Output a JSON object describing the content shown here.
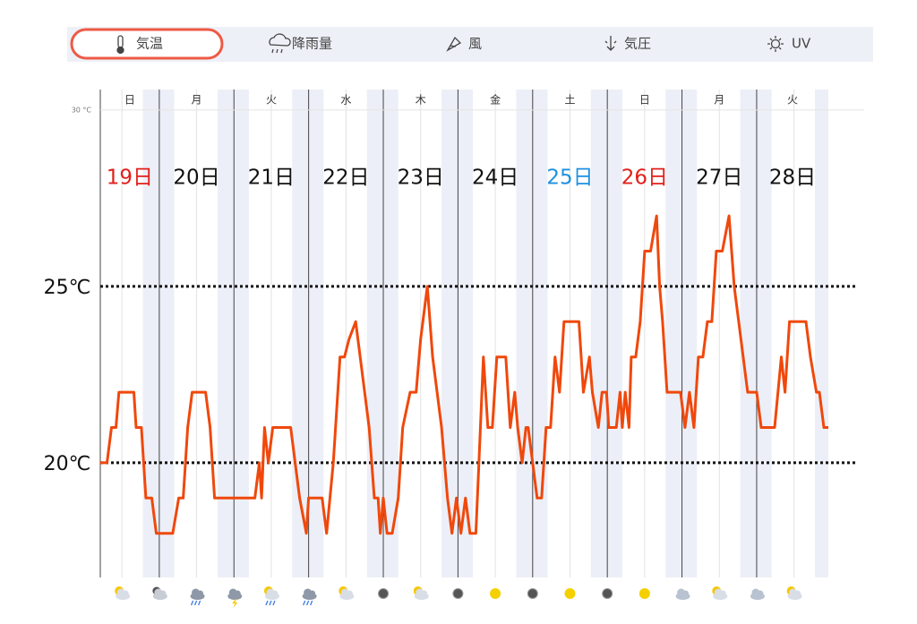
{
  "tabs": [
    "気温",
    "降雨量",
    "風",
    "気圧",
    "UV"
  ],
  "chart_data": {
    "type": "line",
    "color": "#f0480c",
    "xlim": [
      19.21,
      28.96
    ],
    "ylim": [
      16.75,
      30.58
    ],
    "yticks": [
      {
        "value": 30,
        "label": "30 °C"
      }
    ],
    "reference_lines": [
      {
        "value": 25,
        "label": "25℃"
      },
      {
        "value": 20,
        "label": "20℃"
      }
    ],
    "days": [
      {
        "start": 19,
        "weekday": "日",
        "date": "19日",
        "color": "#e0201b"
      },
      {
        "start": 20,
        "weekday": "月",
        "date": "20日",
        "color": "#111111"
      },
      {
        "start": 21,
        "weekday": "火",
        "date": "21日",
        "color": "#111111"
      },
      {
        "start": 22,
        "weekday": "水",
        "date": "22日",
        "color": "#111111"
      },
      {
        "start": 23,
        "weekday": "木",
        "date": "23日",
        "color": "#111111"
      },
      {
        "start": 24,
        "weekday": "金",
        "date": "24日",
        "color": "#111111"
      },
      {
        "start": 25,
        "weekday": "土",
        "date": "25日",
        "color": "#1e90e0"
      },
      {
        "start": 26,
        "weekday": "日",
        "date": "26日",
        "color": "#e0201b"
      },
      {
        "start": 27,
        "weekday": "月",
        "date": "27日",
        "color": "#111111"
      },
      {
        "start": 28,
        "weekday": "火",
        "date": "28日",
        "color": "#111111"
      }
    ],
    "x": [
      19.21,
      19.3,
      19.36,
      19.42,
      19.46,
      19.66,
      19.69,
      19.76,
      19.82,
      19.9,
      19.96,
      20.18,
      20.26,
      20.32,
      20.38,
      20.44,
      20.62,
      20.68,
      20.74,
      20.86,
      21.28,
      21.34,
      21.37,
      21.41,
      21.46,
      21.52,
      21.76,
      21.82,
      21.88,
      21.97,
      22.0,
      22.18,
      22.24,
      22.33,
      22.42,
      22.48,
      22.54,
      22.63,
      22.69,
      22.75,
      22.81,
      22.88,
      22.93,
      22.96,
      23.0,
      23.05,
      23.12,
      23.2,
      23.26,
      23.36,
      23.44,
      23.5,
      23.59,
      23.66,
      23.72,
      23.78,
      23.86,
      23.92,
      23.98,
      24.04,
      24.1,
      24.16,
      24.24,
      24.28,
      24.34,
      24.4,
      24.46,
      24.52,
      24.64,
      24.7,
      24.76,
      24.8,
      24.86,
      24.91,
      24.94,
      25.0,
      25.06,
      25.12,
      25.18,
      25.24,
      25.3,
      25.36,
      25.42,
      25.62,
      25.68,
      25.76,
      25.8,
      25.88,
      25.93,
      25.99,
      26.02,
      26.12,
      26.17,
      26.2,
      26.24,
      26.29,
      26.32,
      26.38,
      26.44,
      26.5,
      26.58,
      26.66,
      26.7,
      26.74,
      26.8,
      26.98,
      27.04,
      27.1,
      27.16,
      27.22,
      27.28,
      27.34,
      27.4,
      27.46,
      27.54,
      27.63,
      27.7,
      27.76,
      27.82,
      27.88,
      28.0,
      28.06,
      28.24,
      28.33,
      28.38,
      28.44,
      28.66,
      28.72,
      28.8,
      28.84,
      28.9,
      28.96
    ],
    "values": [
      20,
      20,
      21,
      21,
      22,
      22,
      21,
      21,
      19,
      19,
      18,
      18,
      19,
      19,
      21,
      22,
      22,
      21,
      19,
      19,
      19,
      20,
      19,
      21,
      20,
      21,
      21,
      20,
      19,
      18,
      19,
      19,
      18,
      20,
      23,
      23,
      23.5,
      24,
      23,
      22,
      21,
      19,
      19,
      18,
      19,
      18,
      18,
      19,
      21,
      22,
      22,
      23.5,
      25,
      23,
      22,
      21,
      19,
      18,
      19,
      18,
      19,
      18,
      18,
      20,
      23,
      21,
      21,
      23,
      23,
      21,
      22,
      21,
      20,
      21,
      21,
      20,
      19,
      19,
      21,
      21,
      23,
      22,
      24,
      24,
      22,
      23,
      22,
      21,
      22,
      22,
      21,
      21,
      22,
      21,
      22,
      21,
      23,
      23,
      24,
      26,
      26,
      27,
      25,
      24,
      22,
      22,
      21,
      22,
      21,
      23,
      23,
      24,
      24,
      26,
      26,
      27,
      25,
      24,
      23,
      22,
      22,
      21,
      21,
      23,
      22,
      24,
      24,
      23,
      22,
      22,
      21,
      21
    ]
  }
}
